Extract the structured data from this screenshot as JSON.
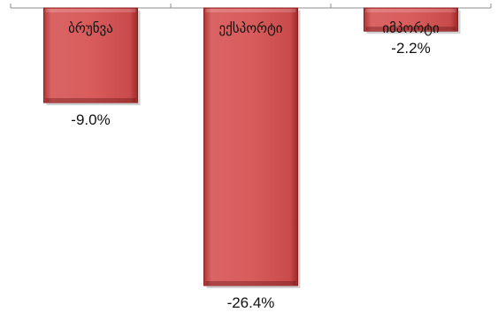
{
  "chart_data": {
    "type": "bar",
    "categories": [
      "ბრუნვა",
      "ექსპორტი",
      "იმპორტი"
    ],
    "values": [
      -9.0,
      -26.4,
      -2.2
    ],
    "value_labels": [
      "-9.0%",
      "-26.4%",
      "-2.2%"
    ],
    "ylim": [
      -26.4,
      0
    ],
    "grid": false,
    "legend": "none",
    "bar_color": "#d45a5a",
    "bar_edge_color": "#8b1f1f"
  }
}
